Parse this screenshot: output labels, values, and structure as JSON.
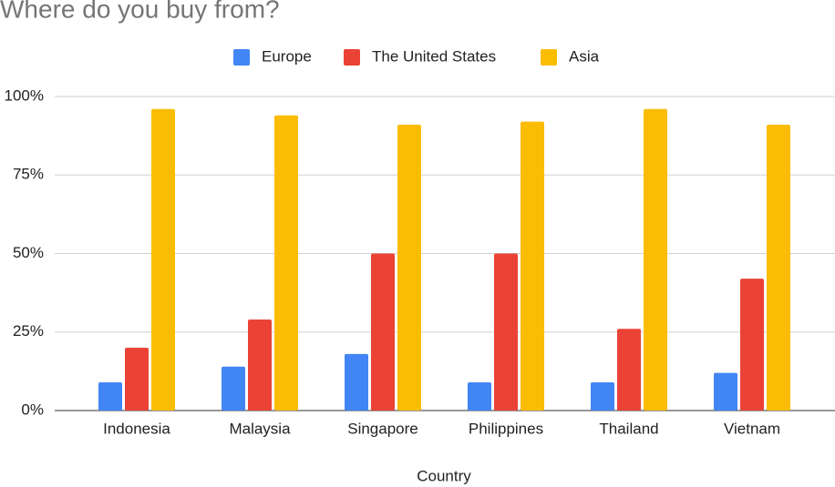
{
  "chart_data": {
    "type": "bar",
    "title": "Where do you buy from?",
    "x_label": "Country",
    "categories": [
      "Indonesia",
      "Malaysia",
      "Singapore",
      "Philippines",
      "Thailand",
      "Vietnam"
    ],
    "series": [
      {
        "name": "Europe",
        "color": "#4285f4",
        "values": [
          9,
          14,
          18,
          9,
          9,
          12
        ]
      },
      {
        "name": "The United States",
        "color": "#ea4335",
        "values": [
          20,
          29,
          50,
          50,
          26,
          42
        ]
      },
      {
        "name": "Asia",
        "color": "#fbbc04",
        "values": [
          96,
          94,
          91,
          92,
          96,
          91
        ]
      }
    ],
    "ylim": [
      0,
      100
    ],
    "yticks": [
      {
        "value": 0,
        "label": "0%"
      },
      {
        "value": 25,
        "label": "25%"
      },
      {
        "value": 50,
        "label": "50%"
      },
      {
        "value": 75,
        "label": "75%"
      },
      {
        "value": 100,
        "label": "100%"
      }
    ],
    "grid": true,
    "legend": "top"
  }
}
